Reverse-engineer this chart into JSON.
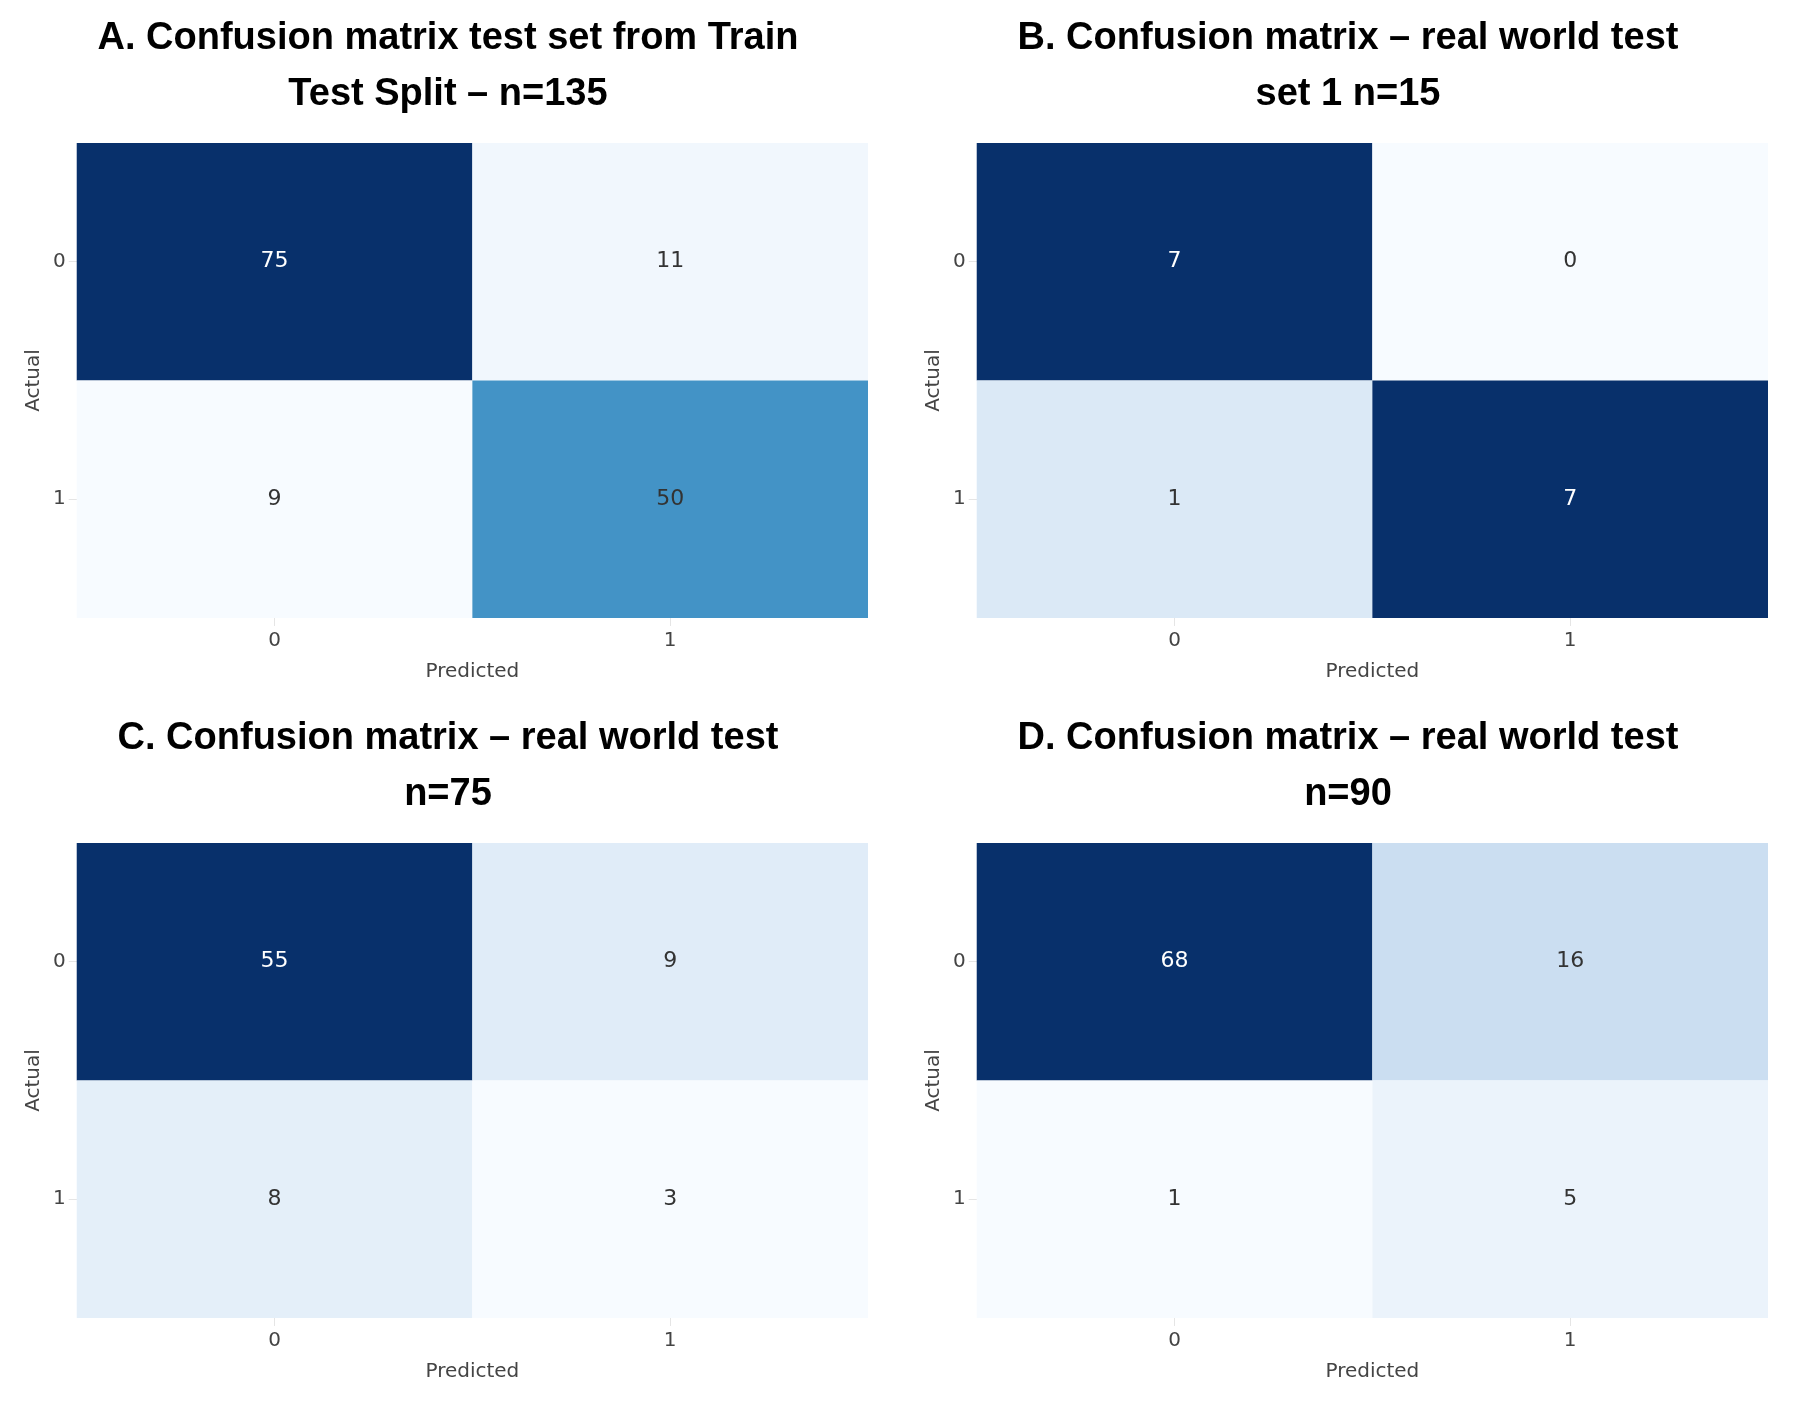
{
  "chart_data": [
    {
      "type": "heatmap",
      "title": "A. Confusion matrix test set from Train Test Split – n=135",
      "xlabel": "Predicted",
      "ylabel": "Actual",
      "categories": [
        "0",
        "1"
      ],
      "y_categories": [
        "0",
        "1"
      ],
      "cells": [
        [
          75,
          11
        ],
        [
          9,
          50
        ]
      ],
      "data_labels": true
    },
    {
      "type": "heatmap",
      "title": "B. Confusion matrix – real world test set 1 n=15",
      "xlabel": "Predicted",
      "ylabel": "Actual",
      "categories": [
        "0",
        "1"
      ],
      "y_categories": [
        "0",
        "1"
      ],
      "cells": [
        [
          7,
          0
        ],
        [
          1,
          7
        ]
      ],
      "data_labels": true
    },
    {
      "type": "heatmap",
      "title": "C. Confusion matrix – real world test n=75",
      "xlabel": "Predicted",
      "ylabel": "Actual",
      "categories": [
        "0",
        "1"
      ],
      "y_categories": [
        "0",
        "1"
      ],
      "cells": [
        [
          55,
          9
        ],
        [
          8,
          3
        ]
      ],
      "data_labels": true
    },
    {
      "type": "heatmap",
      "title": "D. Confusion matrix – real world test n=90",
      "xlabel": "Predicted",
      "ylabel": "Actual",
      "categories": [
        "0",
        "1"
      ],
      "y_categories": [
        "0",
        "1"
      ],
      "cells": [
        [
          68,
          16
        ],
        [
          1,
          5
        ]
      ],
      "data_labels": true
    }
  ]
}
